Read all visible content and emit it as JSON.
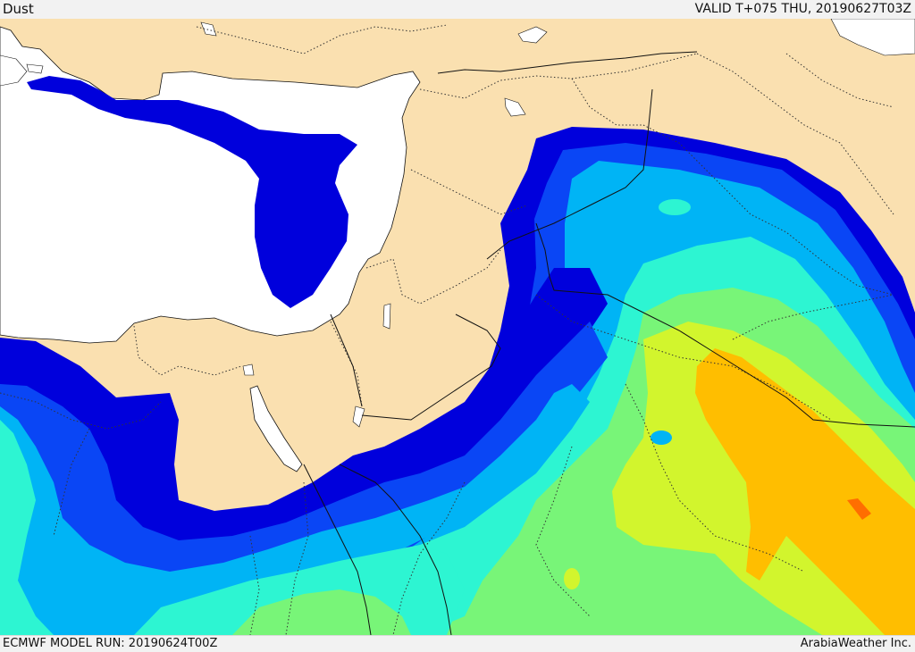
{
  "header": {
    "title": "Dust",
    "valid_time": "VALID T+075 THU, 20190627T03Z"
  },
  "footer": {
    "model_run": "ECMWF MODEL RUN: 20190624T00Z",
    "credit": "ArabiaWeather Inc."
  },
  "map": {
    "region": "Eastern Mediterranean, Middle East, Northeast Africa",
    "field": "dust concentration",
    "colors": {
      "land": "#FAE0B0",
      "sea": "#FFFFFF",
      "dust_levels": [
        "#0000DC",
        "#0A46F5",
        "#00B4F5",
        "#2DF5D2",
        "#78F578",
        "#D2F52D",
        "#FFBE00",
        "#FF6E00"
      ]
    }
  }
}
